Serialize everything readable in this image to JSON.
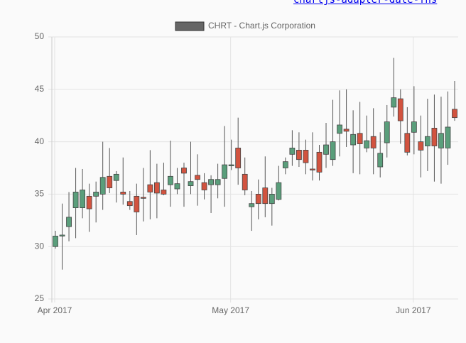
{
  "page_text": {
    "link": "chartjs-adapter-date-fns"
  },
  "chart_data": {
    "type": "candlestick",
    "categories": [
      "Apr 2017",
      null,
      null,
      null,
      null,
      null,
      null,
      null,
      null,
      null,
      null,
      null,
      null,
      null,
      null,
      null,
      null,
      null,
      null,
      null,
      null,
      null,
      null,
      null,
      null,
      null,
      "May 2017",
      null,
      null,
      null,
      null,
      null,
      null,
      null,
      null,
      null,
      null,
      null,
      null,
      null,
      null,
      null,
      null,
      null,
      null,
      null,
      null,
      null,
      null,
      null,
      null,
      null,
      null,
      "Jun 2017",
      null,
      null,
      null,
      null,
      null,
      null
    ],
    "series": [
      {
        "name": "CHRT - Chart.js Corporation",
        "color": "#666666",
        "up_color": "#5a9e7b",
        "down_color": "#d2533f",
        "open": [
          30.0,
          31.0,
          31.9,
          33.7,
          33.7,
          34.8,
          34.8,
          35.0,
          36.7,
          36.3,
          35.2,
          34.3,
          34.8,
          34.7,
          35.9,
          36.1,
          35.4,
          35.9,
          35.5,
          37.5,
          35.8,
          36.8,
          36.1,
          35.9,
          35.9,
          36.5,
          37.7,
          39.4,
          36.9,
          33.8,
          35.0,
          35.6,
          34.1,
          34.5,
          37.5,
          38.8,
          39.2,
          39.2,
          37.4,
          39.0,
          38.8,
          38.3,
          40.8,
          41.2,
          39.7,
          40.8,
          39.4,
          40.5,
          37.6,
          39.9,
          43.3,
          44.1,
          40.8,
          40.9,
          40.0,
          39.6,
          41.3,
          39.4,
          39.4,
          43.1
        ],
        "high": [
          31.5,
          34.1,
          35.2,
          37.5,
          37.4,
          36.0,
          36.2,
          40.0,
          39.4,
          37.2,
          38.5,
          35.3,
          36.0,
          37.5,
          39.2,
          37.9,
          38.0,
          40.1,
          37.5,
          38.0,
          40.0,
          38.8,
          37.0,
          36.8,
          37.9,
          41.5,
          40.2,
          42.3,
          38.5,
          35.3,
          36.4,
          38.6,
          35.6,
          37.7,
          38.5,
          41.1,
          40.9,
          40.2,
          40.9,
          39.7,
          41.8,
          44.0,
          44.9,
          45.0,
          43.0,
          43.8,
          42.5,
          43.2,
          40.9,
          43.5,
          48.0,
          45.0,
          43.3,
          45.3,
          42.5,
          44.1,
          44.5,
          44.3,
          44.8,
          45.8
        ],
        "low": [
          29.8,
          27.8,
          30.5,
          30.8,
          32.7,
          31.4,
          32.3,
          33.5,
          35.1,
          34.2,
          34.0,
          33.5,
          31.1,
          32.4,
          32.6,
          32.7,
          34.9,
          33.8,
          35.0,
          33.8,
          35.0,
          33.9,
          34.5,
          33.2,
          34.6,
          33.8,
          37.3,
          35.9,
          34.9,
          31.5,
          32.6,
          32.8,
          32.0,
          34.4,
          36.9,
          37.7,
          37.6,
          36.9,
          36.3,
          36.3,
          37.5,
          37.7,
          38.6,
          39.5,
          37.0,
          36.9,
          39.0,
          36.9,
          36.6,
          38.5,
          42.4,
          39.8,
          38.7,
          38.8,
          36.6,
          37.2,
          36.2,
          36.0,
          37.8,
          42.0
        ],
        "close": [
          31.0,
          31.1,
          32.8,
          35.2,
          35.4,
          33.6,
          35.2,
          36.6,
          35.6,
          36.9,
          35.0,
          33.9,
          33.3,
          34.6,
          35.2,
          35.1,
          35.0,
          36.7,
          36.0,
          37.0,
          36.2,
          36.4,
          35.4,
          36.4,
          36.4,
          37.8,
          37.8,
          37.5,
          35.4,
          34.1,
          34.1,
          34.1,
          35.0,
          36.1,
          38.1,
          39.4,
          38.3,
          38.0,
          37.3,
          37.1,
          39.7,
          40.0,
          41.6,
          41.0,
          40.7,
          39.8,
          40.1,
          39.4,
          38.9,
          41.9,
          44.2,
          42.0,
          39.0,
          41.9,
          39.2,
          40.5,
          39.6,
          40.8,
          41.4,
          42.3
        ]
      }
    ],
    "ylim": [
      25,
      50
    ],
    "yticks": [
      25,
      30,
      35,
      40,
      45,
      50
    ],
    "grid": true,
    "legend": "top"
  }
}
